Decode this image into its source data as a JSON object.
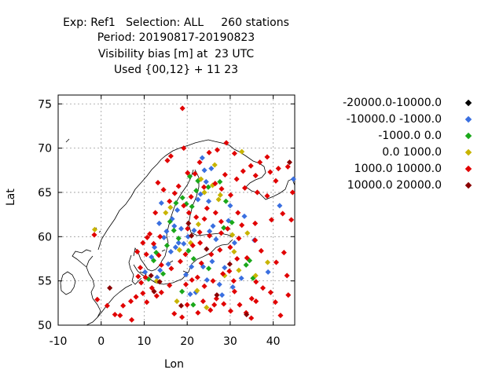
{
  "header": {
    "line1": "Exp: Ref1   Selection: ALL     260 stations",
    "line2": "Period: 20190817-20190823",
    "line3": "Visibility bias [m] at  23 UTC",
    "line4": "Used {00,12} + 11 23"
  },
  "chart_data": {
    "type": "scatter",
    "title": "",
    "xlabel": "Lon",
    "ylabel": "Lat",
    "xlim": [
      -10,
      45
    ],
    "ylim": [
      50,
      76
    ],
    "xticks": [
      -10,
      0,
      10,
      20,
      30,
      40
    ],
    "yticks": [
      50,
      55,
      60,
      65,
      70,
      75
    ],
    "grid": true,
    "legend_position": "top-right (outside plot)",
    "series": [
      {
        "name": "-20000.0-10000.0",
        "color": "#000000",
        "points": []
      },
      {
        "name": "-10000.0 -1000.0",
        "color": "#3a6fe0",
        "points": [
          [
            10.2,
            56.0
          ],
          [
            13.5,
            61.5
          ],
          [
            14.0,
            63.8
          ],
          [
            14.6,
            59.9
          ],
          [
            15.2,
            60.6
          ],
          [
            16.5,
            62.0
          ],
          [
            17.0,
            61.2
          ],
          [
            18.0,
            59.3
          ],
          [
            18.6,
            60.9
          ],
          [
            19.2,
            59.2
          ],
          [
            20.2,
            60.0
          ],
          [
            21.6,
            60.7
          ],
          [
            20.7,
            53.5
          ],
          [
            22.0,
            53.7
          ],
          [
            23.1,
            64.8
          ],
          [
            23.5,
            68.9
          ],
          [
            24.0,
            67.5
          ],
          [
            24.4,
            66.2
          ],
          [
            25.6,
            67.7
          ],
          [
            25.0,
            64.0
          ],
          [
            26.7,
            59.7
          ],
          [
            26.0,
            61.2
          ],
          [
            27.5,
            54.6
          ],
          [
            28.7,
            56.5
          ],
          [
            29.6,
            61.8
          ],
          [
            30.6,
            54.3
          ],
          [
            31.0,
            59.3
          ],
          [
            33.3,
            62.3
          ],
          [
            35.6,
            59.6
          ],
          [
            44.7,
            66.5
          ],
          [
            13.0,
            55.4
          ],
          [
            11.7,
            57.7
          ],
          [
            12.4,
            58.8
          ],
          [
            15.6,
            56.9
          ],
          [
            16.2,
            58.3
          ],
          [
            17.3,
            58.8
          ],
          [
            21.0,
            56.6
          ],
          [
            23.7,
            56.6
          ],
          [
            25.8,
            57.2
          ],
          [
            28.1,
            53.4
          ],
          [
            32.6,
            55.3
          ],
          [
            38.8,
            56.0
          ],
          [
            24.6,
            55.1
          ],
          [
            19.7,
            55.7
          ],
          [
            41.5,
            63.5
          ],
          [
            25.2,
            60.6
          ],
          [
            22.5,
            64.2
          ],
          [
            30.0,
            63.5
          ],
          [
            13.7,
            56.2
          ],
          [
            17.7,
            63.0
          ]
        ]
      },
      {
        "name": "-1000.0 0.0",
        "color": "#1aa81a",
        "points": [
          [
            11.0,
            55.2
          ],
          [
            12.2,
            57.3
          ],
          [
            12.8,
            58.2
          ],
          [
            14.4,
            55.8
          ],
          [
            15.3,
            59.0
          ],
          [
            16.0,
            61.7
          ],
          [
            18.9,
            64.4
          ],
          [
            19.8,
            63.7
          ],
          [
            21.1,
            63.4
          ],
          [
            22.5,
            66.3
          ],
          [
            24.9,
            65.6
          ],
          [
            27.6,
            66.2
          ],
          [
            17.4,
            63.8
          ],
          [
            21.5,
            57.5
          ],
          [
            18.0,
            59.8
          ],
          [
            18.8,
            53.8
          ],
          [
            21.4,
            52.3
          ],
          [
            25.0,
            56.4
          ],
          [
            33.7,
            56.8
          ],
          [
            28.5,
            61.0
          ],
          [
            29.0,
            64.0
          ],
          [
            34.5,
            57.3
          ],
          [
            35.3,
            55.3
          ],
          [
            20.3,
            58.4
          ],
          [
            16.9,
            60.7
          ],
          [
            22.1,
            65.2
          ],
          [
            20.6,
            66.8
          ],
          [
            30.4,
            61.6
          ]
        ]
      },
      {
        "name": "0.0 1000.0",
        "color": "#c8b400",
        "points": [
          [
            -1.5,
            60.8
          ],
          [
            15.0,
            62.7
          ],
          [
            16.1,
            63.3
          ],
          [
            18.2,
            58.5
          ],
          [
            22.6,
            61.4
          ],
          [
            24.0,
            65.0
          ],
          [
            25.9,
            65.8
          ],
          [
            27.7,
            64.7
          ],
          [
            27.3,
            64.2
          ],
          [
            30.5,
            60.2
          ],
          [
            32.7,
            69.6
          ],
          [
            22.3,
            53.9
          ],
          [
            24.5,
            52.0
          ],
          [
            17.6,
            52.7
          ],
          [
            32.0,
            56.2
          ],
          [
            35.9,
            55.6
          ],
          [
            30.9,
            58.3
          ],
          [
            28.7,
            55.6
          ],
          [
            20.8,
            59.3
          ],
          [
            38.7,
            57.1
          ],
          [
            34.0,
            60.4
          ],
          [
            12.9,
            55.0
          ],
          [
            23.2,
            66.5
          ],
          [
            26.4,
            68.1
          ]
        ]
      },
      {
        "name": "1000.0 10000.0",
        "color": "#e10000",
        "points": [
          [
            18.9,
            74.5
          ],
          [
            15.4,
            68.6
          ],
          [
            16.2,
            69.1
          ],
          [
            20.1,
            67.2
          ],
          [
            22.9,
            68.4
          ],
          [
            25.1,
            69.5
          ],
          [
            27.0,
            69.8
          ],
          [
            28.8,
            67.0
          ],
          [
            31.0,
            69.4
          ],
          [
            34.8,
            68.0
          ],
          [
            36.9,
            68.4
          ],
          [
            39.3,
            67.3
          ],
          [
            41.2,
            67.7
          ],
          [
            43.4,
            67.9
          ],
          [
            44.5,
            65.0
          ],
          [
            40.6,
            66.3
          ],
          [
            33.4,
            65.5
          ],
          [
            36.3,
            65.0
          ],
          [
            38.6,
            64.6
          ],
          [
            39.6,
            61.9
          ],
          [
            42.2,
            62.6
          ],
          [
            44.2,
            61.9
          ],
          [
            35.8,
            61.5
          ],
          [
            31.8,
            62.7
          ],
          [
            26.6,
            62.7
          ],
          [
            24.0,
            62.0
          ],
          [
            22.1,
            62.2
          ],
          [
            20.4,
            62.7
          ],
          [
            19.2,
            63.5
          ],
          [
            17.1,
            64.9
          ],
          [
            14.5,
            65.3
          ],
          [
            13.2,
            66.1
          ],
          [
            15.9,
            64.0
          ],
          [
            12.6,
            62.7
          ],
          [
            13.7,
            60.0
          ],
          [
            11.3,
            60.3
          ],
          [
            12.2,
            59.2
          ],
          [
            10.7,
            59.9
          ],
          [
            9.7,
            59.3
          ],
          [
            8.4,
            58.3
          ],
          [
            10.5,
            58.0
          ],
          [
            9.1,
            56.5
          ],
          [
            8.6,
            55.5
          ],
          [
            10.3,
            55.4
          ],
          [
            9.3,
            54.8
          ],
          [
            11.8,
            54.2
          ],
          [
            12.9,
            53.3
          ],
          [
            14.0,
            53.7
          ],
          [
            10.6,
            52.6
          ],
          [
            9.7,
            53.6
          ],
          [
            8.1,
            53.2
          ],
          [
            6.9,
            52.7
          ],
          [
            5.1,
            52.2
          ],
          [
            4.4,
            51.1
          ],
          [
            3.2,
            51.2
          ],
          [
            1.4,
            52.2
          ],
          [
            -0.9,
            52.9
          ],
          [
            -1.6,
            60.2
          ],
          [
            7.1,
            50.6
          ],
          [
            15.9,
            54.5
          ],
          [
            17.0,
            51.3
          ],
          [
            18.8,
            50.9
          ],
          [
            20.0,
            52.3
          ],
          [
            22.5,
            51.4
          ],
          [
            23.7,
            52.7
          ],
          [
            26.3,
            52.3
          ],
          [
            28.5,
            52.4
          ],
          [
            30.1,
            51.6
          ],
          [
            31.0,
            53.8
          ],
          [
            33.7,
            51.4
          ],
          [
            35.0,
            53.0
          ],
          [
            36.0,
            52.7
          ],
          [
            37.6,
            54.2
          ],
          [
            39.4,
            53.7
          ],
          [
            40.5,
            52.6
          ],
          [
            41.7,
            51.1
          ],
          [
            43.5,
            53.4
          ],
          [
            43.2,
            55.6
          ],
          [
            40.7,
            57.1
          ],
          [
            42.5,
            58.2
          ],
          [
            37.2,
            58.4
          ],
          [
            35.8,
            59.6
          ],
          [
            32.0,
            59.8
          ],
          [
            30.0,
            58.8
          ],
          [
            27.6,
            58.5
          ],
          [
            25.6,
            58.0
          ],
          [
            23.0,
            59.3
          ],
          [
            21.3,
            59.0
          ],
          [
            19.6,
            58.0
          ],
          [
            18.4,
            57.2
          ],
          [
            16.3,
            56.4
          ],
          [
            14.0,
            56.8
          ],
          [
            13.4,
            57.9
          ],
          [
            22.4,
            55.4
          ],
          [
            24.0,
            54.4
          ],
          [
            26.0,
            55.0
          ],
          [
            28.3,
            55.8
          ],
          [
            29.8,
            56.1
          ],
          [
            31.6,
            57.5
          ],
          [
            33.9,
            57.6
          ],
          [
            36.0,
            54.9
          ],
          [
            30.8,
            55.0
          ],
          [
            26.8,
            53.0
          ],
          [
            25.4,
            51.7
          ],
          [
            32.2,
            52.3
          ],
          [
            34.9,
            50.8
          ],
          [
            19.7,
            54.6
          ],
          [
            21.1,
            55.1
          ],
          [
            23.3,
            57.0
          ],
          [
            25.2,
            60.1
          ],
          [
            27.9,
            60.4
          ],
          [
            29.4,
            60.9
          ],
          [
            32.7,
            61.3
          ],
          [
            30.1,
            64.7
          ],
          [
            28.0,
            65.4
          ],
          [
            23.9,
            65.6
          ],
          [
            21.8,
            67.1
          ],
          [
            26.5,
            66.0
          ],
          [
            31.5,
            66.5
          ],
          [
            38.6,
            69.0
          ],
          [
            35.9,
            66.9
          ],
          [
            33.0,
            67.4
          ],
          [
            24.6,
            63.2
          ],
          [
            20.9,
            64.5
          ],
          [
            18.0,
            65.7
          ],
          [
            19.2,
            70.0
          ],
          [
            29.1,
            70.6
          ],
          [
            27.9,
            61.7
          ],
          [
            20.1,
            60.9
          ],
          [
            22.9,
            60.5
          ]
        ]
      },
      {
        "name": "10000.0 20000.0",
        "color": "#8a0000",
        "points": [
          [
            2.0,
            54.2
          ],
          [
            12.3,
            53.8
          ],
          [
            18.6,
            52.2
          ],
          [
            11.6,
            55.6
          ],
          [
            13.6,
            54.9
          ],
          [
            21.0,
            60.1
          ],
          [
            24.5,
            58.6
          ],
          [
            26.9,
            53.4
          ],
          [
            29.9,
            56.9
          ],
          [
            33.8,
            51.2
          ],
          [
            20.3,
            61.5
          ],
          [
            43.8,
            68.4
          ]
        ]
      }
    ]
  }
}
